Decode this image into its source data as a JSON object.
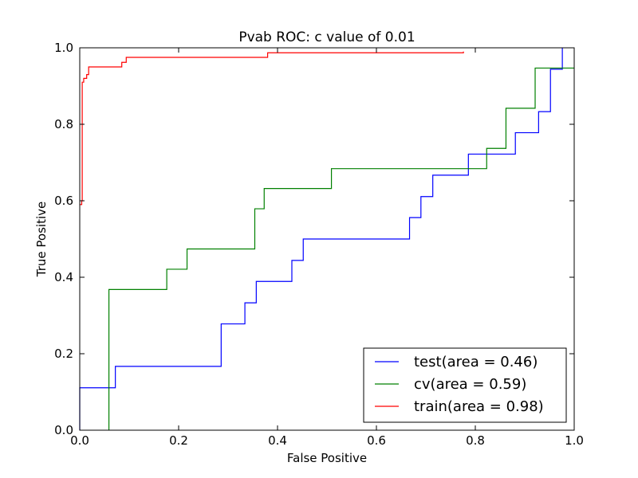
{
  "chart_data": {
    "type": "line",
    "title": "Pvab ROC: c value of 0.01",
    "xlabel": "False Positive",
    "ylabel": "True Positive",
    "xlim": [
      0.0,
      1.0
    ],
    "ylim": [
      0.0,
      1.0
    ],
    "xticks": [
      "0.0",
      "0.2",
      "0.4",
      "0.6",
      "0.8",
      "1.0"
    ],
    "yticks": [
      "0.0",
      "0.2",
      "0.4",
      "0.6",
      "0.8",
      "1.0"
    ],
    "grid": false,
    "legend_position": "lower-right",
    "series": [
      {
        "name": "test(area = 0.46)",
        "color": "#0000ff",
        "points": [
          [
            0.0,
            0.0
          ],
          [
            0.0,
            0.111
          ],
          [
            0.072,
            0.111
          ],
          [
            0.072,
            0.167
          ],
          [
            0.286,
            0.167
          ],
          [
            0.286,
            0.278
          ],
          [
            0.334,
            0.278
          ],
          [
            0.334,
            0.333
          ],
          [
            0.357,
            0.333
          ],
          [
            0.357,
            0.389
          ],
          [
            0.429,
            0.389
          ],
          [
            0.429,
            0.444
          ],
          [
            0.452,
            0.444
          ],
          [
            0.452,
            0.5
          ],
          [
            0.667,
            0.5
          ],
          [
            0.667,
            0.556
          ],
          [
            0.69,
            0.556
          ],
          [
            0.69,
            0.611
          ],
          [
            0.714,
            0.611
          ],
          [
            0.714,
            0.667
          ],
          [
            0.786,
            0.667
          ],
          [
            0.786,
            0.722
          ],
          [
            0.881,
            0.722
          ],
          [
            0.881,
            0.778
          ],
          [
            0.928,
            0.778
          ],
          [
            0.928,
            0.833
          ],
          [
            0.952,
            0.833
          ],
          [
            0.952,
            0.944
          ],
          [
            0.976,
            0.944
          ],
          [
            0.976,
            1.0
          ]
        ]
      },
      {
        "name": "cv(area = 0.59)",
        "color": "#008000",
        "points": [
          [
            0.059,
            0.0
          ],
          [
            0.059,
            0.368
          ],
          [
            0.176,
            0.368
          ],
          [
            0.176,
            0.421
          ],
          [
            0.217,
            0.421
          ],
          [
            0.217,
            0.474
          ],
          [
            0.354,
            0.474
          ],
          [
            0.354,
            0.579
          ],
          [
            0.373,
            0.579
          ],
          [
            0.373,
            0.632
          ],
          [
            0.509,
            0.632
          ],
          [
            0.509,
            0.684
          ],
          [
            0.823,
            0.684
          ],
          [
            0.823,
            0.737
          ],
          [
            0.862,
            0.737
          ],
          [
            0.862,
            0.842
          ],
          [
            0.921,
            0.842
          ],
          [
            0.921,
            0.947
          ],
          [
            1.0,
            0.947
          ]
        ]
      },
      {
        "name": "train(area = 0.98)",
        "color": "#ff0000",
        "points": [
          [
            0.0,
            0.59
          ],
          [
            0.004,
            0.59
          ],
          [
            0.004,
            0.6
          ],
          [
            0.005,
            0.6
          ],
          [
            0.005,
            0.91
          ],
          [
            0.008,
            0.91
          ],
          [
            0.008,
            0.92
          ],
          [
            0.014,
            0.92
          ],
          [
            0.014,
            0.93
          ],
          [
            0.018,
            0.93
          ],
          [
            0.018,
            0.95
          ],
          [
            0.085,
            0.95
          ],
          [
            0.085,
            0.962
          ],
          [
            0.094,
            0.962
          ],
          [
            0.094,
            0.975
          ],
          [
            0.38,
            0.975
          ],
          [
            0.38,
            0.987
          ],
          [
            0.776,
            0.987
          ],
          [
            0.776,
            0.99
          ]
        ]
      }
    ]
  }
}
